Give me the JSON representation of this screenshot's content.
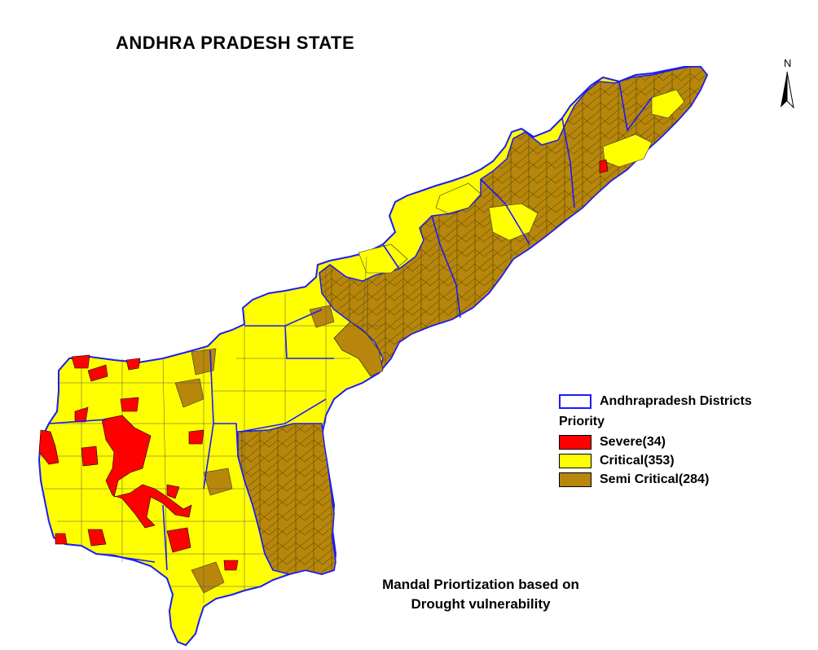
{
  "title": "ANDHRA PRADESH STATE",
  "north_label": "N",
  "subtitle_line1": "Mandal Priortization based on",
  "subtitle_line2": "Drought vulnerability",
  "legend": {
    "district_label": "Andhrapradesh Districts",
    "priority_heading": "Priority",
    "items": [
      {
        "label": "Severe(34)",
        "color": "#ff0000"
      },
      {
        "label": "Critical(353)",
        "color": "#ffff00"
      },
      {
        "label": "Semi Critical(284)",
        "color": "#b8860b"
      }
    ],
    "district_border_color": "#1a1aff"
  },
  "colors": {
    "severe": "#ff0000",
    "critical": "#ffff00",
    "semi_critical": "#b8860b",
    "mandal_border": "#000000",
    "district_border": "#1a1aff"
  }
}
